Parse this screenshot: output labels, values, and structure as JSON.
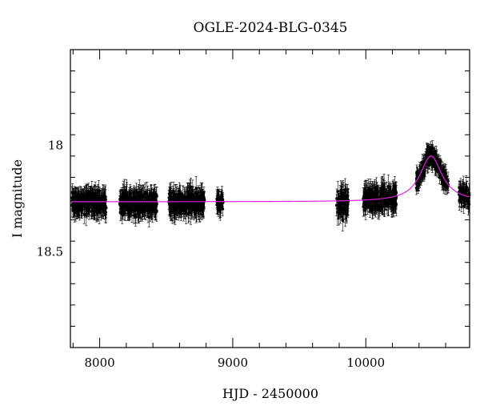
{
  "chart_data": {
    "type": "scatter",
    "title": "OGLE-2024-BLG-0345",
    "xlabel": "HJD - 2450000",
    "ylabel": "I magnitude",
    "xlim": [
      7780,
      10780
    ],
    "ylim": [
      18.95,
      17.55
    ],
    "y_inverted": true,
    "grid": false,
    "x_ticks": [
      8000,
      9000,
      10000
    ],
    "y_ticks": [
      18,
      18.5
    ],
    "y_tick_labels": [
      "18",
      "18.5"
    ],
    "colors": {
      "data": "#000000",
      "model": "#e020e0"
    },
    "observation_seasons": [
      {
        "start": 7790,
        "end": 8050,
        "baseline_mag": 18.27,
        "scatter": 0.04,
        "errorbar": 0.045,
        "n": 260
      },
      {
        "start": 8150,
        "end": 8430,
        "baseline_mag": 18.27,
        "scatter": 0.04,
        "errorbar": 0.045,
        "n": 280
      },
      {
        "start": 8520,
        "end": 8790,
        "baseline_mag": 18.27,
        "scatter": 0.04,
        "errorbar": 0.045,
        "n": 280
      },
      {
        "start": 8880,
        "end": 8930,
        "baseline_mag": 18.27,
        "scatter": 0.03,
        "errorbar": 0.04,
        "n": 40
      },
      {
        "start": 9780,
        "end": 9870,
        "baseline_mag": 18.27,
        "scatter": 0.05,
        "errorbar": 0.05,
        "n": 80
      },
      {
        "start": 9980,
        "end": 10230,
        "baseline_mag": 18.25,
        "scatter": 0.04,
        "errorbar": 0.045,
        "n": 260
      },
      {
        "start": 10380,
        "end": 10620,
        "baseline_mag": 18.07,
        "scatter": 0.03,
        "errorbar": 0.035,
        "n": 260
      },
      {
        "start": 10700,
        "end": 10780,
        "baseline_mag": 18.2,
        "scatter": 0.04,
        "errorbar": 0.04,
        "n": 60
      }
    ],
    "model": {
      "baseline_mag": 18.265,
      "peak_time": 10490,
      "peak_mag": 18.05,
      "width": 95
    }
  }
}
